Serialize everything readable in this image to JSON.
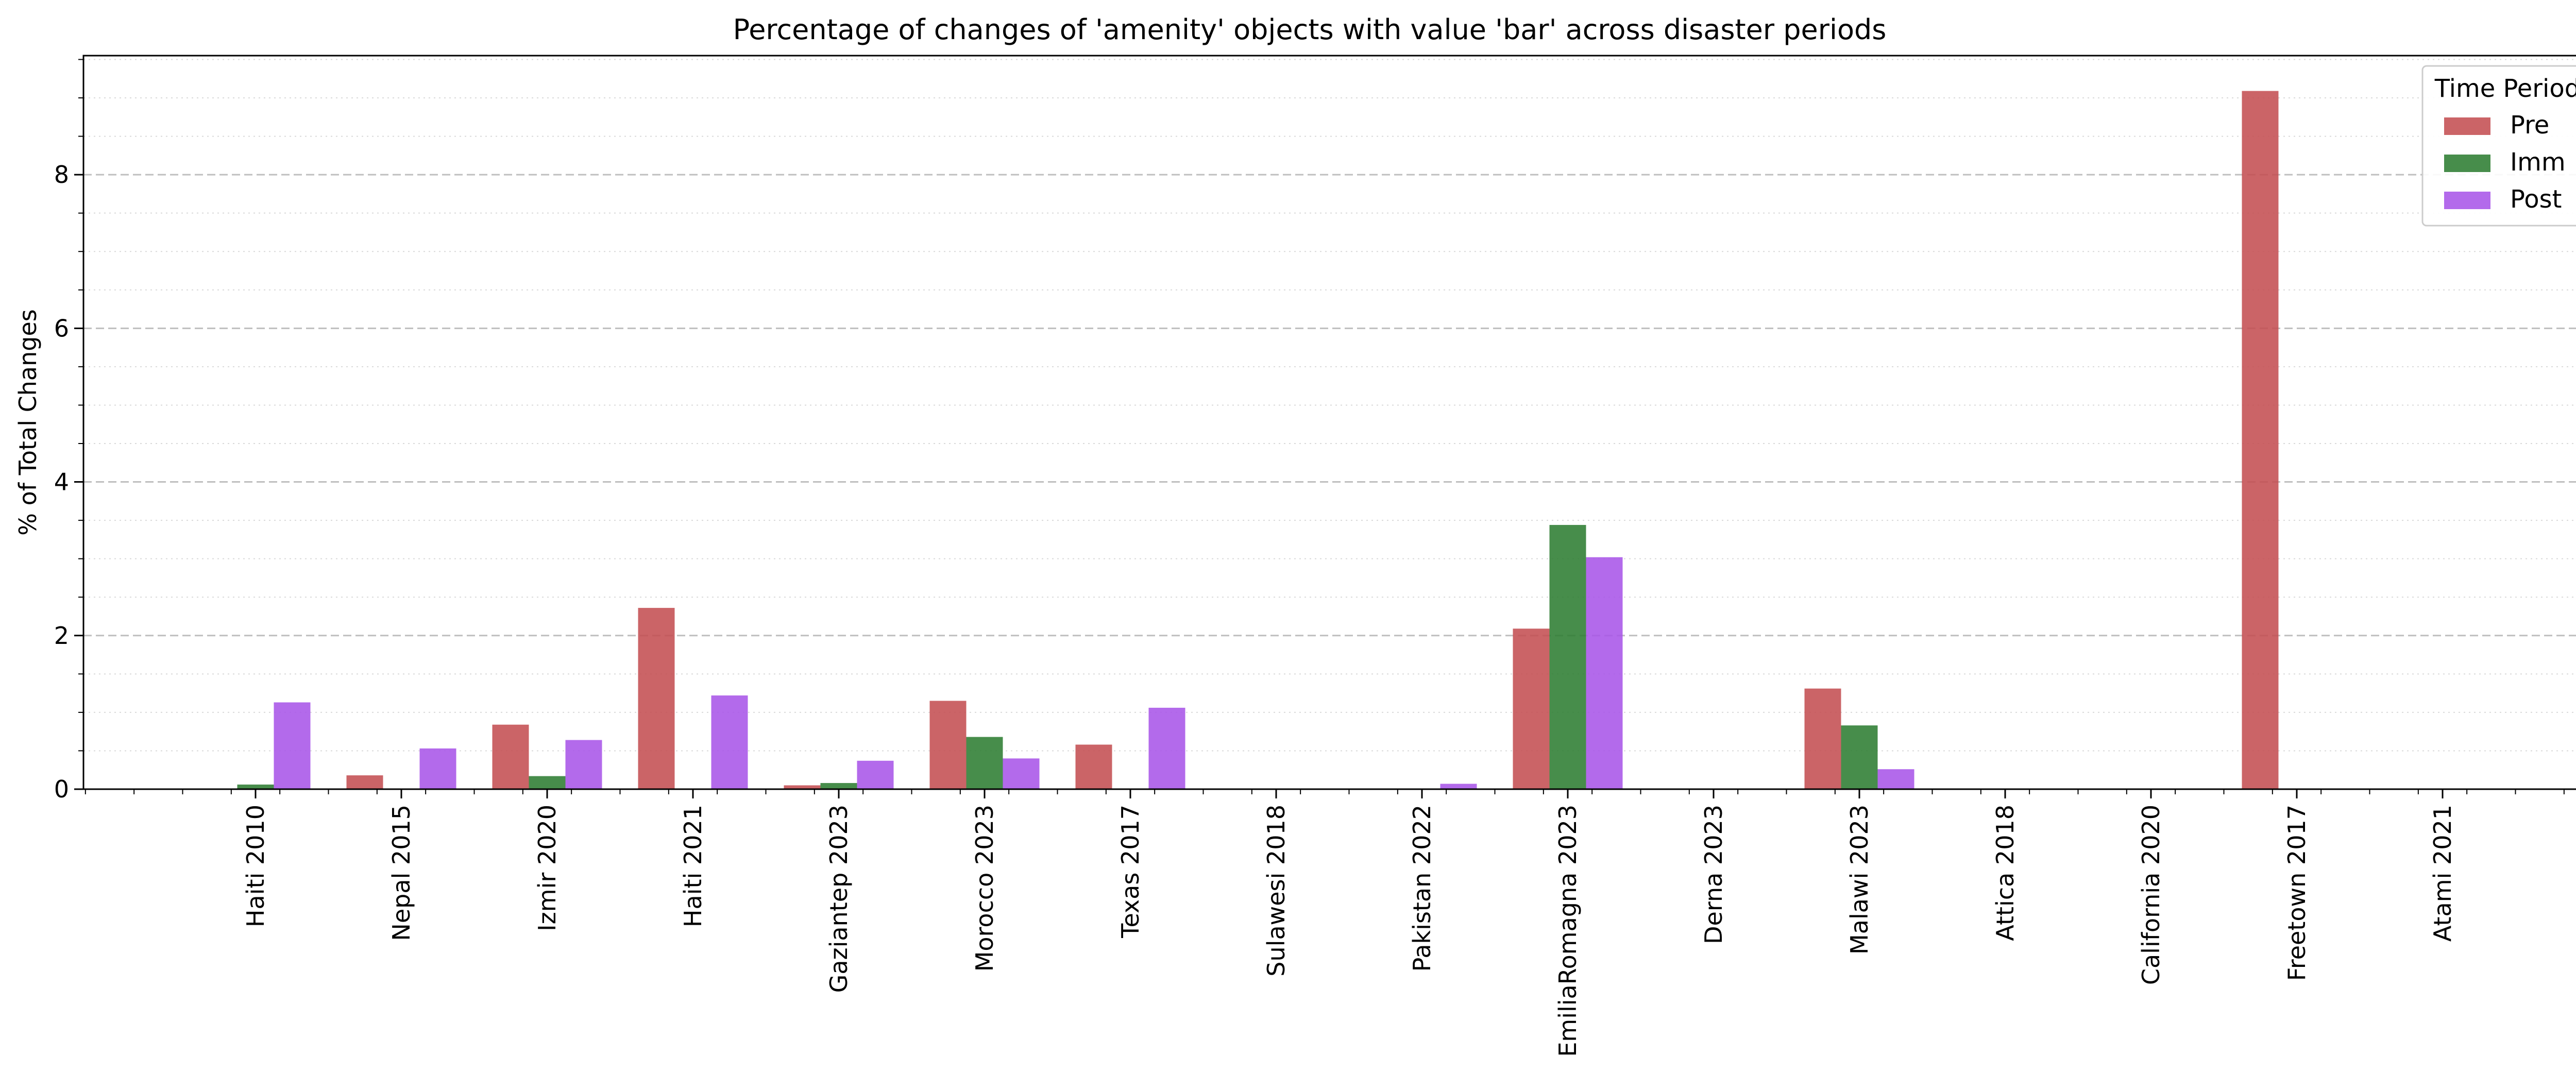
{
  "chart_data": {
    "type": "bar",
    "title": "Percentage of changes of 'amenity' objects with value 'bar' across disaster periods",
    "xlabel": "",
    "ylabel": "% of Total Changes",
    "ylim": [
      0,
      9.55
    ],
    "yticks": [
      0,
      2,
      4,
      6,
      8
    ],
    "grid": "y-dashed-major-dotted-minor",
    "legend": {
      "title": "Time Period",
      "placement": "top-right"
    },
    "categories": [
      "Haiti 2010",
      "Nepal 2015",
      "Izmir 2020",
      "Haiti 2021",
      "Gaziantep 2023",
      "Morocco 2023",
      "Texas 2017",
      "Sulawesi 2018",
      "Pakistan 2022",
      "EmiliaRomagna 2023",
      "Derna 2023",
      "Malawi 2023",
      "Attica 2018",
      "California 2020",
      "Freetown 2017",
      "Atami 2021"
    ],
    "series": [
      {
        "name": "Pre",
        "color": "#c44e52",
        "values": [
          0,
          0.18,
          0.84,
          2.36,
          0.05,
          1.15,
          0.58,
          0,
          0,
          2.09,
          0,
          1.31,
          0,
          0,
          9.09,
          0
        ]
      },
      {
        "name": "Imm",
        "color": "#2e7d32",
        "values": [
          0.06,
          0,
          0.17,
          0,
          0.08,
          0.68,
          0,
          0,
          0,
          3.44,
          0,
          0.83,
          0,
          0,
          0,
          0
        ]
      },
      {
        "name": "Post",
        "color": "#a855e8",
        "values": [
          1.13,
          0.53,
          0.64,
          1.22,
          0.37,
          0.4,
          1.06,
          0,
          0.07,
          3.02,
          0,
          0.26,
          0,
          0,
          0,
          0
        ]
      }
    ]
  }
}
